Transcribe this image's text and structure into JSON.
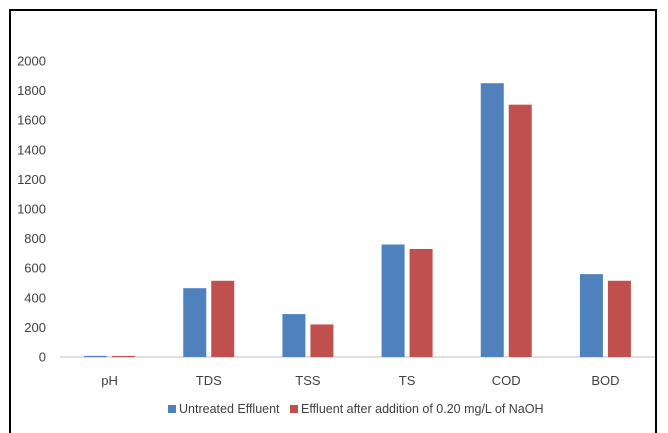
{
  "chart_data": {
    "type": "bar",
    "categories": [
      "pH",
      "TDS",
      "TSS",
      "TS",
      "COD",
      "BOD"
    ],
    "series": [
      {
        "name": "Untreated Effluent",
        "values": [
          7.5,
          465,
          290,
          760,
          1850,
          560
        ],
        "color": "#4f81bd"
      },
      {
        "name": "Effluent after addition of 0.20 mg/L of NaOH",
        "values": [
          7,
          515,
          220,
          730,
          1705,
          515
        ],
        "color": "#c0504d"
      }
    ],
    "ylim": [
      0,
      2000
    ],
    "yticks": [
      "0",
      "200",
      "400",
      "600",
      "800",
      "1000",
      "1200",
      "1400",
      "1600",
      "1800",
      "2000"
    ],
    "grid": false,
    "legend_position": "bottom"
  }
}
